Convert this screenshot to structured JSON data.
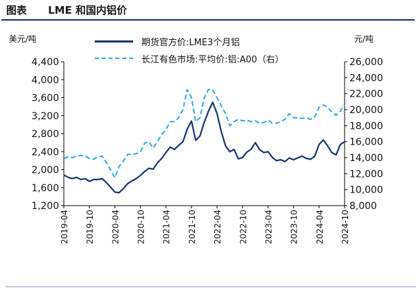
{
  "header": {
    "prefix": "图表",
    "title": "LME 和国内铝价"
  },
  "chart_data": {
    "type": "line",
    "title": "LME 和国内铝价",
    "left_axis": {
      "unit": "美元/吨",
      "ylim": [
        1200,
        4400
      ],
      "ticks": [
        "1,200",
        "1,600",
        "2,000",
        "2,400",
        "2,800",
        "3,200",
        "3,600",
        "4,000",
        "4,400"
      ],
      "tick_values": [
        1200,
        1600,
        2000,
        2400,
        2800,
        3200,
        3600,
        4000,
        4400
      ]
    },
    "right_axis": {
      "unit": "元/吨",
      "ylim": [
        8000,
        26000
      ],
      "ticks": [
        "8,000",
        "10,000",
        "12,000",
        "14,000",
        "16,000",
        "18,000",
        "20,000",
        "22,000",
        "24,000",
        "26,000"
      ],
      "tick_values": [
        8000,
        10000,
        12000,
        14000,
        16000,
        18000,
        20000,
        22000,
        24000,
        26000
      ]
    },
    "x_axis": {
      "range": [
        "2019-04",
        "2024-10"
      ],
      "ticks": [
        "2019-04",
        "2019-10",
        "2020-04",
        "2020-10",
        "2021-04",
        "2021-10",
        "2022-04",
        "2022-10",
        "2023-04",
        "2023-10",
        "2024-04",
        "2024-10"
      ]
    },
    "grid": false,
    "legend": "top-center",
    "series": [
      {
        "name": "期货官方价:LME3个月铝",
        "axis": "left",
        "style": "solid",
        "color": "#12376e",
        "points": [
          [
            "2019-04",
            1880
          ],
          [
            "2019-05",
            1830
          ],
          [
            "2019-06",
            1800
          ],
          [
            "2019-07",
            1830
          ],
          [
            "2019-08",
            1780
          ],
          [
            "2019-09",
            1800
          ],
          [
            "2019-10",
            1740
          ],
          [
            "2019-11",
            1780
          ],
          [
            "2019-12",
            1780
          ],
          [
            "2020-01",
            1800
          ],
          [
            "2020-02",
            1710
          ],
          [
            "2020-03",
            1610
          ],
          [
            "2020-04",
            1500
          ],
          [
            "2020-05",
            1490
          ],
          [
            "2020-06",
            1580
          ],
          [
            "2020-07",
            1690
          ],
          [
            "2020-08",
            1750
          ],
          [
            "2020-09",
            1800
          ],
          [
            "2020-10",
            1870
          ],
          [
            "2020-11",
            1960
          ],
          [
            "2020-12",
            2030
          ],
          [
            "2021-01",
            2010
          ],
          [
            "2021-02",
            2150
          ],
          [
            "2021-03",
            2250
          ],
          [
            "2021-04",
            2380
          ],
          [
            "2021-05",
            2500
          ],
          [
            "2021-06",
            2450
          ],
          [
            "2021-07",
            2540
          ],
          [
            "2021-08",
            2620
          ],
          [
            "2021-09",
            2900
          ],
          [
            "2021-10",
            3080
          ],
          [
            "2021-11",
            2650
          ],
          [
            "2021-12",
            2750
          ],
          [
            "2022-01",
            3050
          ],
          [
            "2022-02",
            3300
          ],
          [
            "2022-03",
            3500
          ],
          [
            "2022-04",
            3250
          ],
          [
            "2022-05",
            2850
          ],
          [
            "2022-06",
            2530
          ],
          [
            "2022-07",
            2400
          ],
          [
            "2022-08",
            2450
          ],
          [
            "2022-09",
            2240
          ],
          [
            "2022-10",
            2270
          ],
          [
            "2022-11",
            2390
          ],
          [
            "2022-12",
            2450
          ],
          [
            "2023-01",
            2600
          ],
          [
            "2023-02",
            2450
          ],
          [
            "2023-03",
            2380
          ],
          [
            "2023-04",
            2400
          ],
          [
            "2023-05",
            2270
          ],
          [
            "2023-06",
            2200
          ],
          [
            "2023-07",
            2220
          ],
          [
            "2023-08",
            2180
          ],
          [
            "2023-09",
            2260
          ],
          [
            "2023-10",
            2220
          ],
          [
            "2023-11",
            2260
          ],
          [
            "2023-12",
            2300
          ],
          [
            "2024-01",
            2250
          ],
          [
            "2024-02",
            2230
          ],
          [
            "2024-03",
            2300
          ],
          [
            "2024-04",
            2560
          ],
          [
            "2024-05",
            2660
          ],
          [
            "2024-06",
            2530
          ],
          [
            "2024-07",
            2380
          ],
          [
            "2024-08",
            2330
          ],
          [
            "2024-09",
            2560
          ],
          [
            "2024-10",
            2620
          ]
        ]
      },
      {
        "name": "长江有色市场:平均价:铝:A00（右）",
        "axis": "right",
        "style": "dashed",
        "color": "#29a8e0",
        "points": [
          [
            "2019-04",
            13900
          ],
          [
            "2019-05",
            14100
          ],
          [
            "2019-06",
            14000
          ],
          [
            "2019-07",
            14200
          ],
          [
            "2019-08",
            14300
          ],
          [
            "2019-09",
            14200
          ],
          [
            "2019-10",
            13900
          ],
          [
            "2019-11",
            13800
          ],
          [
            "2019-12",
            14100
          ],
          [
            "2020-01",
            14200
          ],
          [
            "2020-02",
            13400
          ],
          [
            "2020-03",
            12400
          ],
          [
            "2020-04",
            11500
          ],
          [
            "2020-05",
            12900
          ],
          [
            "2020-06",
            13600
          ],
          [
            "2020-07",
            14400
          ],
          [
            "2020-08",
            14400
          ],
          [
            "2020-09",
            14500
          ],
          [
            "2020-10",
            14700
          ],
          [
            "2020-11",
            15800
          ],
          [
            "2020-12",
            16000
          ],
          [
            "2021-01",
            15200
          ],
          [
            "2021-02",
            16000
          ],
          [
            "2021-03",
            16900
          ],
          [
            "2021-04",
            17500
          ],
          [
            "2021-05",
            18500
          ],
          [
            "2021-06",
            18500
          ],
          [
            "2021-07",
            19000
          ],
          [
            "2021-08",
            20000
          ],
          [
            "2021-09",
            22500
          ],
          [
            "2021-10",
            21500
          ],
          [
            "2021-11",
            18500
          ],
          [
            "2021-12",
            19000
          ],
          [
            "2022-01",
            21500
          ],
          [
            "2022-02",
            22500
          ],
          [
            "2022-03",
            22500
          ],
          [
            "2022-04",
            21500
          ],
          [
            "2022-05",
            20500
          ],
          [
            "2022-06",
            19500
          ],
          [
            "2022-07",
            18000
          ],
          [
            "2022-08",
            18500
          ],
          [
            "2022-09",
            18800
          ],
          [
            "2022-10",
            18600
          ],
          [
            "2022-11",
            18700
          ],
          [
            "2022-12",
            18500
          ],
          [
            "2023-01",
            18600
          ],
          [
            "2023-02",
            18300
          ],
          [
            "2023-03",
            18400
          ],
          [
            "2023-04",
            18700
          ],
          [
            "2023-05",
            18300
          ],
          [
            "2023-06",
            18300
          ],
          [
            "2023-07",
            18500
          ],
          [
            "2023-08",
            18800
          ],
          [
            "2023-09",
            19500
          ],
          [
            "2023-10",
            19000
          ],
          [
            "2023-11",
            19000
          ],
          [
            "2023-12",
            18900
          ],
          [
            "2024-01",
            19000
          ],
          [
            "2024-02",
            18800
          ],
          [
            "2024-03",
            19100
          ],
          [
            "2024-04",
            20300
          ],
          [
            "2024-05",
            20600
          ],
          [
            "2024-06",
            20300
          ],
          [
            "2024-07",
            19700
          ],
          [
            "2024-08",
            19300
          ],
          [
            "2024-09",
            19800
          ],
          [
            "2024-10",
            20600
          ]
        ]
      }
    ]
  }
}
